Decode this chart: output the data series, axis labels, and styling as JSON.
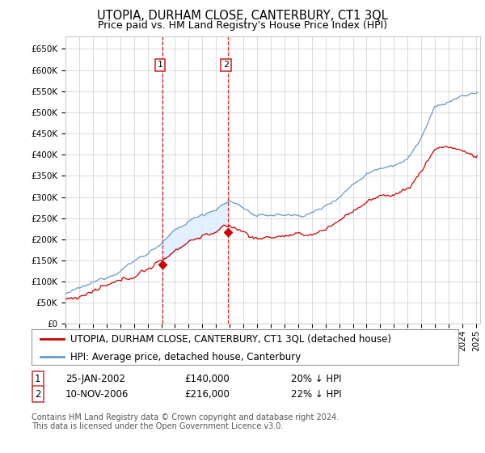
{
  "title": "UTOPIA, DURHAM CLOSE, CANTERBURY, CT1 3QL",
  "subtitle": "Price paid vs. HM Land Registry's House Price Index (HPI)",
  "legend_label_red": "UTOPIA, DURHAM CLOSE, CANTERBURY, CT1 3QL (detached house)",
  "legend_label_blue": "HPI: Average price, detached house, Canterbury",
  "sale1_date": "25-JAN-2002",
  "sale1_price": "£140,000",
  "sale1_hpi": "20% ↓ HPI",
  "sale2_date": "10-NOV-2006",
  "sale2_price": "£216,000",
  "sale2_hpi": "22% ↓ HPI",
  "footnote": "Contains HM Land Registry data © Crown copyright and database right 2024.\nThis data is licensed under the Open Government Licence v3.0.",
  "red_color": "#cc0000",
  "blue_color": "#6699cc",
  "shade_color": "#ddeeff",
  "grid_color": "#cccccc",
  "vline_color": "#cc0000",
  "background_color": "#ffffff",
  "sale1_x_year": 2002.07,
  "sale2_x_year": 2006.87,
  "ylim": [
    0,
    680000
  ],
  "yticks": [
    0,
    50000,
    100000,
    150000,
    200000,
    250000,
    300000,
    350000,
    400000,
    450000,
    500000,
    550000,
    600000,
    650000
  ],
  "xlim_start": 1995,
  "xlim_end": 2025.3,
  "title_fontsize": 10.5,
  "subtitle_fontsize": 9,
  "tick_fontsize": 7.5,
  "legend_fontsize": 8.5
}
